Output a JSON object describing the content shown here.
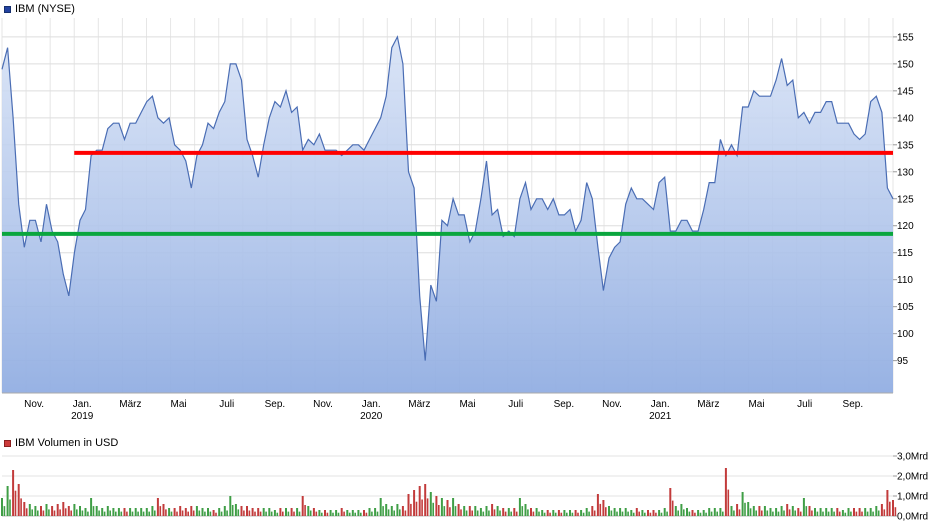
{
  "chart_data": [
    {
      "type": "area",
      "title": "IBM (NYSE)",
      "x_unit": "weekly, Okt. 2018 - Okt. 2021",
      "months_total": 37,
      "y_range": [
        89,
        158.5
      ],
      "y_ticks": [
        95,
        100,
        105,
        110,
        115,
        120,
        125,
        130,
        135,
        140,
        145,
        150,
        155
      ],
      "line_color": "#4a6db4",
      "fill_top": "#d4e0f5",
      "fill_bottom": "#92aee2",
      "grid": true,
      "legend_position": "top-left",
      "x_labels": [
        {
          "text": "Nov.",
          "month": 1
        },
        {
          "text": "Jan.",
          "month": 3
        },
        {
          "text": "März",
          "month": 5
        },
        {
          "text": "Mai",
          "month": 7
        },
        {
          "text": "Juli",
          "month": 9
        },
        {
          "text": "Sep.",
          "month": 11
        },
        {
          "text": "Nov.",
          "month": 13
        },
        {
          "text": "Jan.",
          "month": 15
        },
        {
          "text": "März",
          "month": 17
        },
        {
          "text": "Mai",
          "month": 19
        },
        {
          "text": "Juli",
          "month": 21
        },
        {
          "text": "Sep.",
          "month": 23
        },
        {
          "text": "Nov.",
          "month": 25
        },
        {
          "text": "Jan.",
          "month": 27
        },
        {
          "text": "März",
          "month": 29
        },
        {
          "text": "Mai",
          "month": 31
        },
        {
          "text": "Juli",
          "month": 33
        },
        {
          "text": "Sep.",
          "month": 35
        }
      ],
      "year_labels": [
        {
          "text": "2019",
          "month": 3
        },
        {
          "text": "2020",
          "month": 15
        },
        {
          "text": "2021",
          "month": 27
        }
      ],
      "values": [
        149,
        153,
        140,
        124,
        116,
        121,
        121,
        117,
        124,
        119,
        117,
        111,
        107,
        115,
        121,
        123,
        133,
        134,
        134,
        138,
        139,
        139,
        136,
        139,
        139,
        141,
        143,
        144,
        140,
        139,
        140,
        135,
        134,
        132,
        127,
        133,
        135,
        139,
        138,
        141,
        143,
        150,
        150,
        147,
        136,
        133,
        129,
        135,
        140,
        143,
        142,
        145,
        141,
        142,
        134,
        136,
        135,
        137,
        134,
        134,
        134,
        133,
        134,
        135,
        135,
        134,
        136,
        138,
        140,
        144,
        153,
        155,
        150,
        130,
        127,
        107,
        95,
        109,
        106,
        121,
        120,
        125,
        122,
        122,
        117,
        119,
        125,
        132,
        122,
        123,
        118,
        119,
        118,
        125,
        128,
        123,
        125,
        125,
        123,
        125,
        122,
        122,
        123,
        119,
        121,
        128,
        125,
        116,
        108,
        114,
        116,
        117,
        124,
        127,
        125,
        125,
        124,
        123,
        128,
        129,
        119,
        119,
        121,
        121,
        119,
        119,
        123,
        128,
        128,
        136,
        133,
        135,
        133,
        142,
        142,
        145,
        144,
        144,
        144,
        147,
        151,
        146,
        147,
        140,
        141,
        139,
        141,
        141,
        143,
        143,
        139,
        139,
        139,
        137,
        136,
        137,
        143,
        144,
        141,
        127,
        125
      ],
      "annotations": [
        {
          "type": "hline",
          "value": 133.5,
          "color": "#ff0000",
          "start_month": 3,
          "end_month": 37
        },
        {
          "type": "hline",
          "value": 118.5,
          "color": "#0aa63e",
          "start_month": 0,
          "end_month": 37
        }
      ]
    },
    {
      "type": "bar",
      "title": "IBM Volumen in USD",
      "unit": "Mrd USD",
      "up_color": "#3f9e46",
      "down_color": "#c23b3b",
      "y_ticks": [
        {
          "label": "0,0Mrd",
          "value": 0
        },
        {
          "label": "1,0Mrd",
          "value": 1
        },
        {
          "label": "2,0Mrd",
          "value": 2
        },
        {
          "label": "3,0Mrd",
          "value": 3
        }
      ],
      "values_mrd": [
        0.9,
        1.5,
        2.3,
        1.6,
        0.7,
        0.6,
        0.5,
        0.5,
        0.6,
        0.5,
        0.6,
        0.7,
        0.5,
        0.6,
        0.5,
        0.4,
        0.9,
        0.5,
        0.4,
        0.5,
        0.4,
        0.4,
        0.4,
        0.4,
        0.4,
        0.4,
        0.4,
        0.5,
        0.9,
        0.6,
        0.4,
        0.4,
        0.5,
        0.4,
        0.5,
        0.5,
        0.4,
        0.4,
        0.3,
        0.4,
        0.5,
        1.0,
        0.6,
        0.5,
        0.5,
        0.4,
        0.4,
        0.4,
        0.4,
        0.3,
        0.4,
        0.4,
        0.4,
        0.4,
        1.0,
        0.5,
        0.4,
        0.3,
        0.3,
        0.3,
        0.3,
        0.4,
        0.3,
        0.3,
        0.3,
        0.3,
        0.4,
        0.4,
        0.9,
        0.6,
        0.5,
        0.6,
        0.5,
        1.1,
        1.3,
        1.5,
        1.6,
        1.2,
        1.0,
        0.9,
        0.8,
        0.9,
        0.6,
        0.5,
        0.5,
        0.5,
        0.4,
        0.5,
        0.6,
        0.5,
        0.4,
        0.4,
        0.4,
        0.9,
        0.6,
        0.4,
        0.4,
        0.3,
        0.3,
        0.3,
        0.3,
        0.3,
        0.3,
        0.3,
        0.3,
        0.4,
        0.5,
        1.1,
        0.8,
        0.5,
        0.4,
        0.4,
        0.4,
        0.3,
        0.4,
        0.3,
        0.3,
        0.3,
        0.3,
        0.4,
        1.4,
        0.5,
        0.6,
        0.4,
        0.3,
        0.3,
        0.3,
        0.4,
        0.4,
        0.4,
        2.4,
        0.5,
        0.6,
        1.2,
        0.7,
        0.5,
        0.5,
        0.5,
        0.4,
        0.4,
        0.5,
        0.6,
        0.5,
        0.4,
        0.9,
        0.5,
        0.4,
        0.4,
        0.4,
        0.4,
        0.4,
        0.3,
        0.4,
        0.4,
        0.4,
        0.4,
        0.4,
        0.5,
        0.6,
        1.3,
        0.8
      ]
    }
  ]
}
